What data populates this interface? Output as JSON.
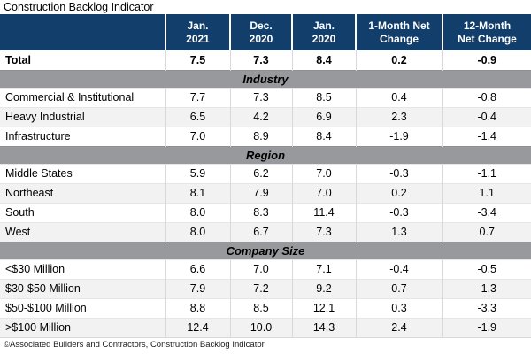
{
  "title": "Construction Backlog Indicator",
  "colors": {
    "header_bg": "#123E6B",
    "header_text": "#FFFFFF",
    "section_band_bg": "#97999C",
    "alt_row_bg": "#F2F2F3",
    "row_bg": "#FFFFFF"
  },
  "chart_data": {
    "type": "table",
    "title": "Construction Backlog Indicator",
    "columns": [
      "Jan.\n2021",
      "Dec.\n2020",
      "Jan.\n2020",
      "1-Month Net\nChange",
      "12-Month\nNet Change"
    ],
    "total_row": {
      "label": "Total",
      "values": [
        "7.5",
        "7.3",
        "8.4",
        "0.2",
        "-0.9"
      ]
    },
    "sections": [
      {
        "name": "Industry",
        "rows": [
          {
            "label": "Commercial & Institutional",
            "values": [
              "7.7",
              "7.3",
              "8.5",
              "0.4",
              "-0.8"
            ]
          },
          {
            "label": "Heavy Industrial",
            "values": [
              "6.5",
              "4.2",
              "6.9",
              "2.3",
              "-0.4"
            ]
          },
          {
            "label": "Infrastructure",
            "values": [
              "7.0",
              "8.9",
              "8.4",
              "-1.9",
              "-1.4"
            ]
          }
        ]
      },
      {
        "name": "Region",
        "rows": [
          {
            "label": "Middle States",
            "values": [
              "5.9",
              "6.2",
              "7.0",
              "-0.3",
              "-1.1"
            ]
          },
          {
            "label": "Northeast",
            "values": [
              "8.1",
              "7.9",
              "7.0",
              "0.2",
              "1.1"
            ]
          },
          {
            "label": "South",
            "values": [
              "8.0",
              "8.3",
              "11.4",
              "-0.3",
              "-3.4"
            ]
          },
          {
            "label": "West",
            "values": [
              "8.0",
              "6.7",
              "7.3",
              "1.3",
              "0.7"
            ]
          }
        ]
      },
      {
        "name": "Company Size",
        "rows": [
          {
            "label": "<$30 Million",
            "values": [
              "6.6",
              "7.0",
              "7.1",
              "-0.4",
              "-0.5"
            ]
          },
          {
            "label": "$30-$50 Million",
            "values": [
              "7.9",
              "7.2",
              "9.2",
              "0.7",
              "-1.3"
            ]
          },
          {
            "label": "$50-$100 Million",
            "values": [
              "8.8",
              "8.5",
              "12.1",
              "0.3",
              "-3.3"
            ]
          },
          {
            "label": ">$100 Million",
            "values": [
              "12.4",
              "10.0",
              "14.3",
              "2.4",
              "-1.9"
            ]
          }
        ]
      }
    ],
    "footnote": "©Associated Builders and Contractors, Construction Backlog Indicator"
  }
}
